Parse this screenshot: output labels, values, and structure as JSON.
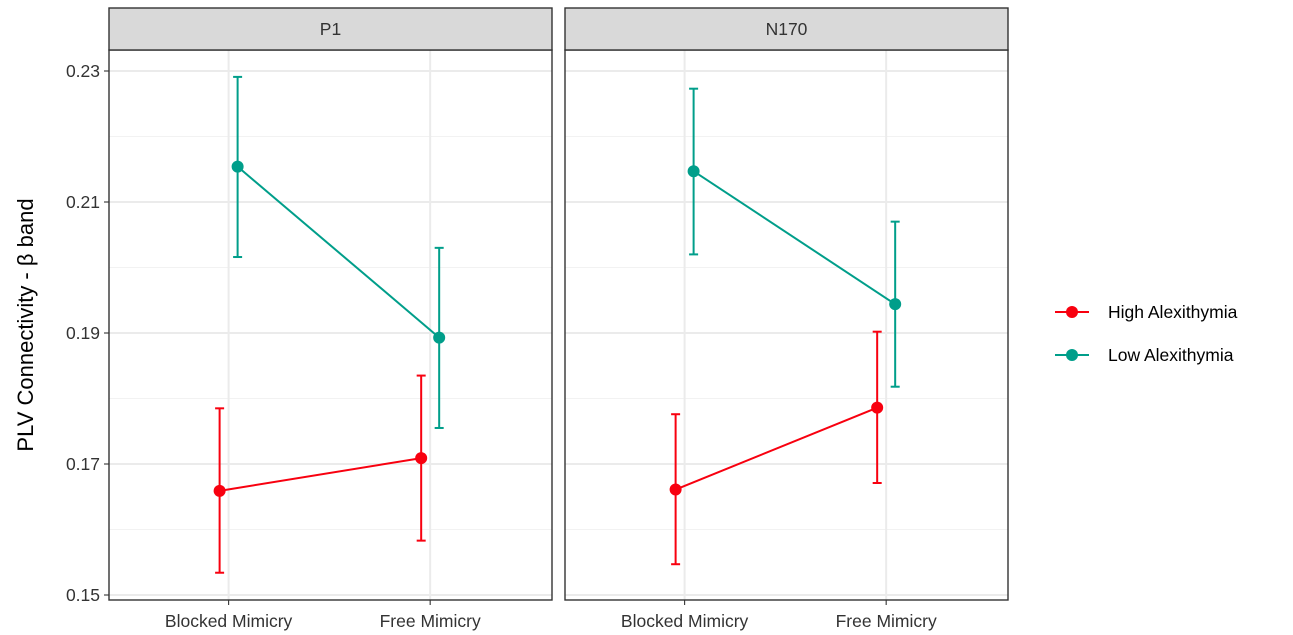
{
  "chart_data": {
    "type": "line",
    "ylabel": "PLV Connectivity - β band",
    "xlabel": "",
    "ylim": [
      0.15,
      0.23
    ],
    "yticks": [
      0.15,
      0.17,
      0.19,
      0.21,
      0.23
    ],
    "y_tick_labels": [
      "0.15",
      "0.17",
      "0.19",
      "0.21",
      "0.23"
    ],
    "categories": [
      "Blocked Mimicry",
      "Free Mimicry"
    ],
    "grid": true,
    "legend_position": "right",
    "panels": [
      {
        "title": "P1",
        "series": [
          {
            "name": "High Alexithymia",
            "values": [
              0.1659,
              0.1709
            ],
            "lower": [
              0.1534,
              0.1583
            ],
            "upper": [
              0.1785,
              0.1835
            ]
          },
          {
            "name": "Low Alexithymia",
            "values": [
              0.2154,
              0.1893
            ],
            "lower": [
              0.2016,
              0.1755
            ],
            "upper": [
              0.2291,
              0.203
            ]
          }
        ]
      },
      {
        "title": "N170",
        "series": [
          {
            "name": "High Alexithymia",
            "values": [
              0.1661,
              0.1786
            ],
            "lower": [
              0.1547,
              0.1671
            ],
            "upper": [
              0.1776,
              0.1902
            ]
          },
          {
            "name": "Low Alexithymia",
            "values": [
              0.2147,
              0.1944
            ],
            "lower": [
              0.202,
              0.1818
            ],
            "upper": [
              0.2273,
              0.207
            ]
          }
        ]
      }
    ],
    "legend": [
      {
        "name": "High Alexithymia",
        "color": "#F8000F"
      },
      {
        "name": "Low Alexithymia",
        "color": "#009E8A"
      }
    ],
    "colors": {
      "High Alexithymia": "#F8000F",
      "Low Alexithymia": "#009E8A"
    }
  }
}
